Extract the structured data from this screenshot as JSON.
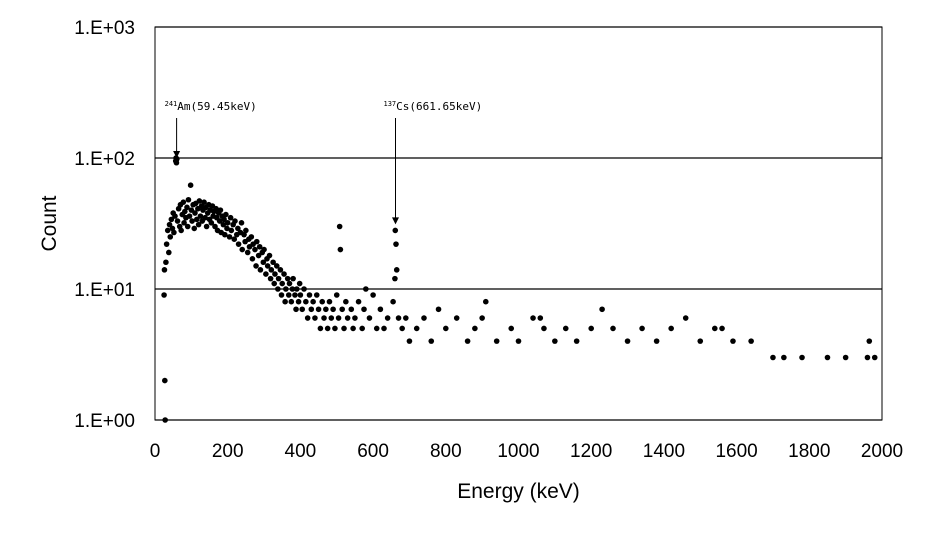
{
  "chart_data": {
    "type": "scatter",
    "title": "",
    "xlabel": "Energy (keV)",
    "ylabel": "Count",
    "xlim": [
      0,
      2000
    ],
    "ylim": [
      1,
      1000
    ],
    "y_scale": "log",
    "x_ticks": [
      "0",
      "200",
      "400",
      "600",
      "800",
      "1000",
      "1200",
      "1400",
      "1600",
      "1800",
      "2000"
    ],
    "y_ticks": [
      "1.E+00",
      "1.E+01",
      "1.E+02",
      "1.E+03"
    ],
    "grid": "horizontal major gridlines",
    "legend": "none",
    "marker_color": "#000000",
    "annotations": [
      {
        "sup": "241",
        "label": "Am(59.45keV)",
        "x": 59.45,
        "y": 90
      },
      {
        "sup": "137",
        "label": "Cs(661.65keV)",
        "x": 661.65,
        "y": 28
      }
    ],
    "series": [
      {
        "description": "Photon energy spectrum counts per channel",
        "points": [
          [
            25,
            9
          ],
          [
            26,
            14
          ],
          [
            27,
            2
          ],
          [
            28,
            1
          ],
          [
            30,
            16
          ],
          [
            32,
            22
          ],
          [
            35,
            28
          ],
          [
            38,
            19
          ],
          [
            40,
            31
          ],
          [
            42,
            25
          ],
          [
            45,
            34
          ],
          [
            48,
            29
          ],
          [
            50,
            38
          ],
          [
            52,
            27
          ],
          [
            55,
            36
          ],
          [
            57,
            95
          ],
          [
            58,
            100
          ],
          [
            59,
            92
          ],
          [
            60,
            98
          ],
          [
            62,
            33
          ],
          [
            65,
            41
          ],
          [
            68,
            30
          ],
          [
            70,
            44
          ],
          [
            72,
            28
          ],
          [
            75,
            37
          ],
          [
            78,
            46
          ],
          [
            80,
            32
          ],
          [
            82,
            39
          ],
          [
            85,
            35
          ],
          [
            88,
            42
          ],
          [
            90,
            30
          ],
          [
            92,
            48
          ],
          [
            95,
            36
          ],
          [
            98,
            62
          ],
          [
            100,
            40
          ],
          [
            102,
            33
          ],
          [
            105,
            44
          ],
          [
            108,
            29
          ],
          [
            110,
            38
          ],
          [
            112,
            45
          ],
          [
            115,
            34
          ],
          [
            118,
            41
          ],
          [
            120,
            31
          ],
          [
            122,
            47
          ],
          [
            125,
            36
          ],
          [
            128,
            43
          ],
          [
            130,
            33
          ],
          [
            132,
            40
          ],
          [
            135,
            46
          ],
          [
            138,
            35
          ],
          [
            140,
            42
          ],
          [
            142,
            30
          ],
          [
            145,
            38
          ],
          [
            148,
            44
          ],
          [
            150,
            34
          ],
          [
            152,
            40
          ],
          [
            155,
            32
          ],
          [
            158,
            43
          ],
          [
            160,
            36
          ],
          [
            162,
            39
          ],
          [
            165,
            30
          ],
          [
            168,
            41
          ],
          [
            170,
            35
          ],
          [
            172,
            28
          ],
          [
            175,
            38
          ],
          [
            178,
            33
          ],
          [
            180,
            40
          ],
          [
            182,
            27
          ],
          [
            185,
            36
          ],
          [
            188,
            31
          ],
          [
            190,
            34
          ],
          [
            192,
            26
          ],
          [
            195,
            37
          ],
          [
            198,
            29
          ],
          [
            200,
            32
          ],
          [
            205,
            25
          ],
          [
            208,
            35
          ],
          [
            210,
            28
          ],
          [
            215,
            31
          ],
          [
            218,
            24
          ],
          [
            220,
            33
          ],
          [
            225,
            26
          ],
          [
            228,
            29
          ],
          [
            230,
            22
          ],
          [
            235,
            27
          ],
          [
            238,
            32
          ],
          [
            240,
            20
          ],
          [
            245,
            26
          ],
          [
            248,
            23
          ],
          [
            250,
            28
          ],
          [
            255,
            19
          ],
          [
            258,
            24
          ],
          [
            260,
            21
          ],
          [
            265,
            25
          ],
          [
            268,
            17
          ],
          [
            270,
            22
          ],
          [
            275,
            20
          ],
          [
            278,
            15
          ],
          [
            280,
            23
          ],
          [
            285,
            18
          ],
          [
            288,
            21
          ],
          [
            290,
            14
          ],
          [
            295,
            19
          ],
          [
            298,
            16
          ],
          [
            300,
            20
          ],
          [
            305,
            13
          ],
          [
            308,
            17
          ],
          [
            310,
            15
          ],
          [
            315,
            18
          ],
          [
            318,
            12
          ],
          [
            320,
            14
          ],
          [
            325,
            16
          ],
          [
            328,
            11
          ],
          [
            330,
            13
          ],
          [
            335,
            15
          ],
          [
            338,
            10
          ],
          [
            340,
            12
          ],
          [
            345,
            14
          ],
          [
            348,
            9
          ],
          [
            350,
            11
          ],
          [
            355,
            13
          ],
          [
            358,
            8
          ],
          [
            360,
            10
          ],
          [
            365,
            12
          ],
          [
            368,
            9
          ],
          [
            370,
            11
          ],
          [
            375,
            8
          ],
          [
            378,
            10
          ],
          [
            380,
            12
          ],
          [
            385,
            9
          ],
          [
            388,
            7
          ],
          [
            390,
            10
          ],
          [
            395,
            8
          ],
          [
            398,
            11
          ],
          [
            400,
            9
          ],
          [
            405,
            7
          ],
          [
            410,
            10
          ],
          [
            415,
            8
          ],
          [
            420,
            6
          ],
          [
            425,
            9
          ],
          [
            430,
            7
          ],
          [
            435,
            8
          ],
          [
            440,
            6
          ],
          [
            445,
            9
          ],
          [
            450,
            7
          ],
          [
            455,
            5
          ],
          [
            460,
            8
          ],
          [
            465,
            6
          ],
          [
            470,
            7
          ],
          [
            475,
            5
          ],
          [
            480,
            8
          ],
          [
            485,
            6
          ],
          [
            490,
            7
          ],
          [
            495,
            5
          ],
          [
            500,
            9
          ],
          [
            505,
            6
          ],
          [
            508,
            30
          ],
          [
            510,
            20
          ],
          [
            515,
            7
          ],
          [
            520,
            5
          ],
          [
            525,
            8
          ],
          [
            530,
            6
          ],
          [
            540,
            7
          ],
          [
            545,
            5
          ],
          [
            550,
            6
          ],
          [
            560,
            8
          ],
          [
            570,
            5
          ],
          [
            575,
            7
          ],
          [
            580,
            10
          ],
          [
            590,
            6
          ],
          [
            600,
            9
          ],
          [
            610,
            5
          ],
          [
            620,
            7
          ],
          [
            630,
            5
          ],
          [
            640,
            6
          ],
          [
            655,
            8
          ],
          [
            660,
            12
          ],
          [
            661,
            28
          ],
          [
            663,
            22
          ],
          [
            665,
            14
          ],
          [
            670,
            6
          ],
          [
            680,
            5
          ],
          [
            690,
            6
          ],
          [
            700,
            4
          ],
          [
            720,
            5
          ],
          [
            740,
            6
          ],
          [
            760,
            4
          ],
          [
            780,
            7
          ],
          [
            800,
            5
          ],
          [
            830,
            6
          ],
          [
            860,
            4
          ],
          [
            880,
            5
          ],
          [
            900,
            6
          ],
          [
            910,
            8
          ],
          [
            940,
            4
          ],
          [
            980,
            5
          ],
          [
            1000,
            4
          ],
          [
            1040,
            6
          ],
          [
            1060,
            6
          ],
          [
            1070,
            5
          ],
          [
            1100,
            4
          ],
          [
            1130,
            5
          ],
          [
            1160,
            4
          ],
          [
            1200,
            5
          ],
          [
            1230,
            7
          ],
          [
            1260,
            5
          ],
          [
            1300,
            4
          ],
          [
            1340,
            5
          ],
          [
            1380,
            4
          ],
          [
            1420,
            5
          ],
          [
            1460,
            6
          ],
          [
            1500,
            4
          ],
          [
            1540,
            5
          ],
          [
            1560,
            5
          ],
          [
            1590,
            4
          ],
          [
            1640,
            4
          ],
          [
            1700,
            3
          ],
          [
            1730,
            3
          ],
          [
            1780,
            3
          ],
          [
            1850,
            3
          ],
          [
            1900,
            3
          ],
          [
            1960,
            3
          ],
          [
            1965,
            4
          ],
          [
            1980,
            3
          ]
        ]
      }
    ]
  }
}
